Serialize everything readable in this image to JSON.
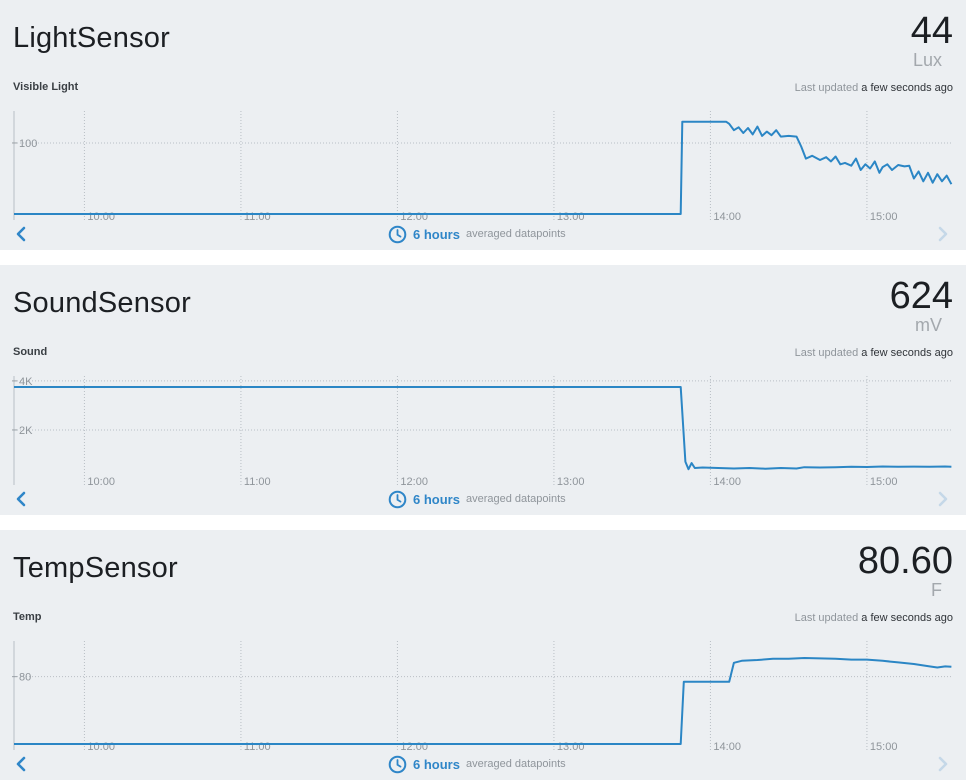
{
  "colors": {
    "line": "#2b86c5",
    "accent": "#2f86c8",
    "card_bg": "#eceff2",
    "grid": "#b9bfc5"
  },
  "cards": [
    {
      "title": "LightSensor",
      "value": "44",
      "unit": "Lux",
      "series_label": "Visible Light",
      "last_updated_prefix": "Last updated",
      "last_updated_when": "a few seconds ago",
      "range_hours": "6 hours",
      "range_note": "averaged datapoints",
      "prev_icon": "chevron-left-icon",
      "next_icon": "chevron-right-icon",
      "chart_data": {
        "type": "line",
        "x_unit": "hours",
        "xlim": [
          9.55,
          15.55
        ],
        "ylim": [
          0,
          145
        ],
        "y_ticks": [
          {
            "v": 100,
            "label": "100"
          }
        ],
        "x_ticks": [
          {
            "v": 10,
            "label": "10:00"
          },
          {
            "v": 11,
            "label": "11:00"
          },
          {
            "v": 12,
            "label": "12:00"
          },
          {
            "v": 13,
            "label": "13:00"
          },
          {
            "v": 14,
            "label": "14:00"
          },
          {
            "v": 15,
            "label": "15:00"
          }
        ],
        "grid": true,
        "points": [
          [
            9.55,
            0
          ],
          [
            13.81,
            0
          ],
          [
            13.82,
            130
          ],
          [
            14.1,
            130
          ],
          [
            14.12,
            127
          ],
          [
            14.15,
            118
          ],
          [
            14.18,
            122
          ],
          [
            14.21,
            114
          ],
          [
            14.24,
            121
          ],
          [
            14.27,
            112
          ],
          [
            14.3,
            123
          ],
          [
            14.33,
            110
          ],
          [
            14.36,
            116
          ],
          [
            14.39,
            111
          ],
          [
            14.42,
            118
          ],
          [
            14.45,
            109
          ],
          [
            14.5,
            110
          ],
          [
            14.55,
            109
          ],
          [
            14.58,
            95
          ],
          [
            14.61,
            78
          ],
          [
            14.65,
            82
          ],
          [
            14.7,
            76
          ],
          [
            14.74,
            80
          ],
          [
            14.77,
            74
          ],
          [
            14.8,
            81
          ],
          [
            14.83,
            70
          ],
          [
            14.86,
            72
          ],
          [
            14.9,
            68
          ],
          [
            14.93,
            78
          ],
          [
            14.96,
            62
          ],
          [
            14.99,
            70
          ],
          [
            15.02,
            64
          ],
          [
            15.05,
            74
          ],
          [
            15.08,
            58
          ],
          [
            15.1,
            66
          ],
          [
            15.13,
            70
          ],
          [
            15.16,
            62
          ],
          [
            15.2,
            69
          ],
          [
            15.24,
            67
          ],
          [
            15.27,
            68
          ],
          [
            15.3,
            50
          ],
          [
            15.33,
            60
          ],
          [
            15.36,
            46
          ],
          [
            15.39,
            58
          ],
          [
            15.42,
            44
          ],
          [
            15.45,
            56
          ],
          [
            15.48,
            46
          ],
          [
            15.51,
            54
          ],
          [
            15.54,
            42
          ]
        ]
      }
    },
    {
      "title": "SoundSensor",
      "value": "624",
      "unit": "mV",
      "series_label": "Sound",
      "last_updated_prefix": "Last updated",
      "last_updated_when": "a few seconds ago",
      "range_hours": "6 hours",
      "range_note": "averaged datapoints",
      "prev_icon": "chevron-left-icon",
      "next_icon": "chevron-right-icon",
      "chart_data": {
        "type": "line",
        "x_unit": "hours",
        "xlim": [
          9.55,
          15.55
        ],
        "ylim": [
          0,
          4200
        ],
        "y_ticks": [
          {
            "v": 2000,
            "label": "2K"
          },
          {
            "v": 4000,
            "label": "4K"
          }
        ],
        "x_ticks": [
          {
            "v": 10,
            "label": "10:00"
          },
          {
            "v": 11,
            "label": "11:00"
          },
          {
            "v": 12,
            "label": "12:00"
          },
          {
            "v": 13,
            "label": "13:00"
          },
          {
            "v": 14,
            "label": "14:00"
          },
          {
            "v": 15,
            "label": "15:00"
          }
        ],
        "grid": true,
        "points": [
          [
            9.55,
            3750
          ],
          [
            13.81,
            3750
          ],
          [
            13.84,
            700
          ],
          [
            13.86,
            400
          ],
          [
            13.88,
            650
          ],
          [
            13.9,
            450
          ],
          [
            13.95,
            470
          ],
          [
            14.05,
            450
          ],
          [
            14.15,
            430
          ],
          [
            14.25,
            450
          ],
          [
            14.35,
            420
          ],
          [
            14.45,
            450
          ],
          [
            14.55,
            430
          ],
          [
            14.6,
            480
          ],
          [
            14.7,
            470
          ],
          [
            14.8,
            480
          ],
          [
            14.9,
            500
          ],
          [
            15.0,
            490
          ],
          [
            15.1,
            510
          ],
          [
            15.2,
            500
          ],
          [
            15.3,
            505
          ],
          [
            15.4,
            500
          ],
          [
            15.5,
            510
          ],
          [
            15.54,
            500
          ]
        ]
      }
    },
    {
      "title": "TempSensor",
      "value": "80.60",
      "unit": "F",
      "series_label": "Temp",
      "last_updated_prefix": "Last updated",
      "last_updated_when": "a few seconds ago",
      "range_hours": "6 hours",
      "range_note": "averaged datapoints",
      "prev_icon": "chevron-left-icon",
      "next_icon": "chevron-right-icon",
      "chart_data": {
        "type": "line",
        "x_unit": "hours",
        "xlim": [
          9.55,
          15.55
        ],
        "ylim": [
          63,
          89
        ],
        "y_ticks": [
          {
            "v": 80,
            "label": "80"
          }
        ],
        "x_ticks": [
          {
            "v": 10,
            "label": "10:00"
          },
          {
            "v": 11,
            "label": "11:00"
          },
          {
            "v": 12,
            "label": "12:00"
          },
          {
            "v": 13,
            "label": "13:00"
          },
          {
            "v": 14,
            "label": "14:00"
          },
          {
            "v": 15,
            "label": "15:00"
          }
        ],
        "grid": true,
        "points": [
          [
            9.55,
            63
          ],
          [
            13.81,
            63
          ],
          [
            13.83,
            78.7
          ],
          [
            14.12,
            78.7
          ],
          [
            14.15,
            83.5
          ],
          [
            14.2,
            84.0
          ],
          [
            14.3,
            84.2
          ],
          [
            14.4,
            84.5
          ],
          [
            14.5,
            84.5
          ],
          [
            14.6,
            84.7
          ],
          [
            14.7,
            84.6
          ],
          [
            14.8,
            84.5
          ],
          [
            14.9,
            84.3
          ],
          [
            15.0,
            84.3
          ],
          [
            15.1,
            84.0
          ],
          [
            15.2,
            83.6
          ],
          [
            15.3,
            83.2
          ],
          [
            15.4,
            82.6
          ],
          [
            15.45,
            82.3
          ],
          [
            15.5,
            82.6
          ],
          [
            15.54,
            82.5
          ]
        ]
      }
    }
  ]
}
